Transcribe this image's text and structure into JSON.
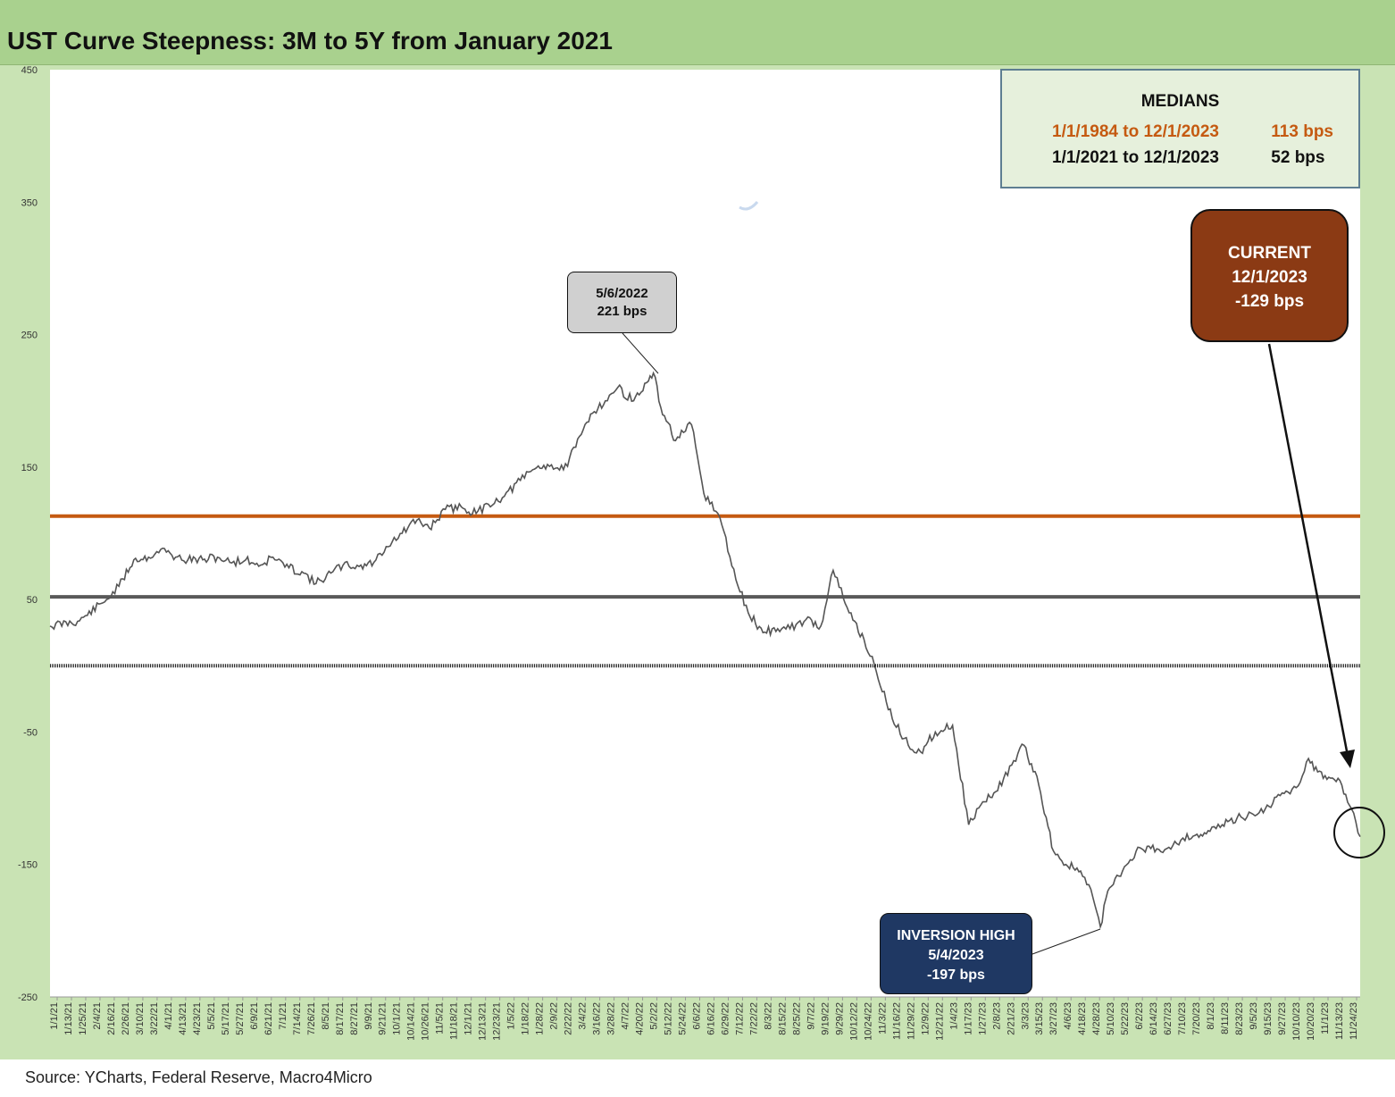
{
  "title": "UST Curve Steepness: 3M to 5Y from January 2021",
  "source": "Source: YCharts, Federal Reserve, Macro4Micro",
  "colors": {
    "long_median": "#c55a11",
    "short_median": "#595959",
    "zero_line": "#222222",
    "series": "#555555",
    "current_box": "#8b3a14",
    "inversion_box": "#1f3863",
    "peak_box": "#d0d0d0"
  },
  "medians_box": {
    "title": "MEDIANS",
    "rows": [
      {
        "range": "1/1/1984 to 12/1/2023",
        "value": "113 bps"
      },
      {
        "range": "1/1/2021 to 12/1/2023",
        "value": "52 bps"
      }
    ]
  },
  "current_box": {
    "line1": "CURRENT",
    "line2": "12/1/2023",
    "line3": "-129 bps"
  },
  "peak_box": {
    "line1": "5/6/2022",
    "line2": "221 bps"
  },
  "inversion_box": {
    "line1": "INVERSION HIGH",
    "line2": "5/4/2023",
    "line3": "-197 bps"
  },
  "chart_data": {
    "type": "line",
    "title": "UST Curve Steepness: 3M to 5Y from January 2021",
    "ylim": [
      -250,
      450
    ],
    "yticks": [
      450,
      350,
      250,
      150,
      50,
      -50,
      -150,
      -250
    ],
    "xtick_labels": [
      "1/1/21",
      "1/13/21",
      "1/25/21",
      "2/4/21",
      "2/16/21",
      "2/26/21",
      "3/10/21",
      "3/22/21",
      "4/1/21",
      "4/13/21",
      "4/23/21",
      "5/5/21",
      "5/17/21",
      "5/27/21",
      "6/9/21",
      "6/21/21",
      "7/1/21",
      "7/14/21",
      "7/26/21",
      "8/5/21",
      "8/17/21",
      "8/27/21",
      "9/9/21",
      "9/21/21",
      "10/1/21",
      "10/14/21",
      "10/26/21",
      "11/5/21",
      "11/18/21",
      "12/1/21",
      "12/13/21",
      "12/23/21",
      "1/5/22",
      "1/18/22",
      "1/28/22",
      "2/9/22",
      "2/22/22",
      "3/4/22",
      "3/16/22",
      "3/28/22",
      "4/7/22",
      "4/20/22",
      "5/2/22",
      "5/12/22",
      "5/24/22",
      "6/6/22",
      "6/16/22",
      "6/29/22",
      "7/12/22",
      "7/22/22",
      "8/3/22",
      "8/15/22",
      "8/25/22",
      "9/7/22",
      "9/19/22",
      "9/29/22",
      "10/12/22",
      "10/24/22",
      "11/3/22",
      "11/16/22",
      "11/29/22",
      "12/9/22",
      "12/21/22",
      "1/4/23",
      "1/17/23",
      "1/27/23",
      "2/8/23",
      "2/21/23",
      "3/3/23",
      "3/15/23",
      "3/27/23",
      "4/6/23",
      "4/18/23",
      "4/28/23",
      "5/10/23",
      "5/22/23",
      "6/2/23",
      "6/14/23",
      "6/27/23",
      "7/10/23",
      "7/20/23",
      "8/1/23",
      "8/11/23",
      "8/23/23",
      "9/5/23",
      "9/15/23",
      "9/27/23",
      "10/10/23",
      "10/20/23",
      "11/1/23",
      "11/13/23",
      "11/24/23"
    ],
    "horizontal_lines": [
      {
        "label": "1/1/1984 to 12/1/2023",
        "value": 113
      },
      {
        "label": "1/1/2021 to 12/1/2023",
        "value": 52
      },
      {
        "value": 0
      }
    ],
    "series": [
      {
        "x": [
          "1/1/21",
          "1/25/21",
          "2/16/21",
          "2/26/21",
          "3/10/21",
          "3/22/21",
          "4/1/21",
          "4/13/21",
          "4/23/21",
          "5/5/21",
          "5/17/21",
          "5/27/21",
          "6/9/21",
          "6/21/21",
          "7/1/21",
          "7/14/21",
          "7/26/21",
          "8/5/21",
          "8/17/21",
          "8/27/21",
          "9/9/21",
          "9/21/21",
          "10/1/21",
          "10/14/21",
          "10/26/21",
          "11/5/21",
          "11/18/21",
          "12/1/21",
          "12/13/21",
          "12/23/21",
          "1/5/22",
          "1/18/22",
          "1/28/22",
          "2/9/22",
          "2/22/22",
          "3/4/22",
          "3/16/22",
          "3/28/22",
          "4/7/22",
          "4/20/22",
          "5/2/22",
          "5/6/22",
          "5/12/22",
          "5/24/22",
          "6/6/22",
          "6/16/22",
          "6/29/22",
          "7/12/22",
          "7/22/22",
          "8/3/22",
          "8/15/22",
          "8/25/22",
          "9/7/22",
          "9/19/22",
          "9/29/22",
          "10/12/22",
          "10/24/22",
          "11/3/22",
          "11/16/22",
          "11/29/22",
          "12/9/22",
          "12/21/22",
          "1/4/23",
          "1/17/23",
          "1/27/23",
          "2/8/23",
          "2/21/23",
          "3/3/23",
          "3/15/23",
          "3/27/23",
          "4/6/23",
          "4/18/23",
          "4/28/23",
          "5/4/23",
          "5/10/23",
          "5/22/23",
          "6/2/23",
          "6/14/23",
          "6/27/23",
          "7/10/23",
          "7/20/23",
          "8/1/23",
          "8/11/23",
          "8/23/23",
          "9/5/23",
          "9/15/23",
          "9/27/23",
          "10/10/23",
          "10/20/23",
          "11/1/23",
          "11/13/23",
          "11/24/23",
          "12/1/23"
        ],
        "y": [
          30,
          34,
          50,
          60,
          80,
          82,
          88,
          82,
          80,
          80,
          82,
          78,
          80,
          76,
          82,
          74,
          70,
          62,
          70,
          76,
          75,
          78,
          90,
          100,
          110,
          104,
          118,
          120,
          115,
          122,
          128,
          140,
          148,
          152,
          148,
          165,
          190,
          200,
          210,
          200,
          215,
          221,
          195,
          170,
          182,
          130,
          112,
          65,
          40,
          25,
          28,
          28,
          35,
          30,
          72,
          40,
          20,
          -4,
          -40,
          -60,
          -65,
          -50,
          -45,
          -120,
          -105,
          -95,
          -75,
          -60,
          -90,
          -140,
          -150,
          -155,
          -175,
          -197,
          -170,
          -155,
          -140,
          -138,
          -138,
          -130,
          -128,
          -125,
          -120,
          -115,
          -112,
          -108,
          -98,
          -92,
          -70,
          -85,
          -85,
          -108,
          -129
        ]
      }
    ]
  }
}
